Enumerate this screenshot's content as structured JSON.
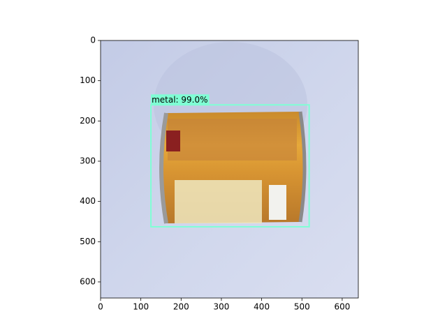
{
  "chart_data": {
    "type": "image",
    "xlim": [
      0,
      640
    ],
    "ylim": [
      640,
      0
    ],
    "xticks": [
      0,
      100,
      200,
      300,
      400,
      500,
      600
    ],
    "yticks": [
      0,
      100,
      200,
      300,
      400,
      500,
      600
    ],
    "boxes": [
      {
        "label": "metal: 99.0%",
        "x": [
          125,
          518
        ],
        "y": [
          160,
          463
        ],
        "color": "#7fffd4"
      }
    ]
  }
}
